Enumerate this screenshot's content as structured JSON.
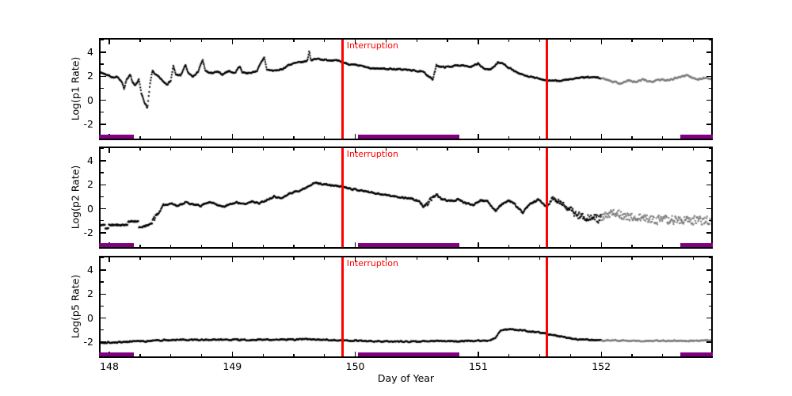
{
  "figure": {
    "xlabel": "Day of Year",
    "annotation_text": "Interruption",
    "colors": {
      "background": "#ffffff",
      "axis": "#000000",
      "points_black": "#000000",
      "points_gray": "#7a7a7a",
      "interruption_line": "#ff0000",
      "annotation_text": "#ff0000",
      "interval_bar": "#800080"
    }
  },
  "chart_data": [
    {
      "type": "scatter",
      "ylabel": "Log(p1 Rate)",
      "xlabel": "",
      "xlim": [
        147.916,
        152.907
      ],
      "ylim": [
        -3.32,
        5.18
      ],
      "x_ticks": [
        148,
        149,
        150,
        151,
        152
      ],
      "y_ticks": [
        -2,
        0,
        2,
        4
      ],
      "x_minor_step": 0.25,
      "y_minor_step": 1,
      "show_x_tick_labels": false,
      "annotation": "Interruption",
      "interruption_lines_x": [
        149.898,
        151.555
      ],
      "interval_bars_x": [
        [
          147.916,
          148.2
        ],
        [
          150.02,
          150.845
        ],
        [
          152.645,
          152.907
        ]
      ],
      "gray_after_x": 152.0,
      "series": {
        "name": "p1",
        "anchors": [
          [
            147.92,
            2.35
          ],
          [
            148.0,
            2.05
          ],
          [
            148.04,
            1.85
          ],
          [
            148.07,
            1.95
          ],
          [
            148.1,
            1.55
          ],
          [
            148.12,
            0.95
          ],
          [
            148.14,
            1.75
          ],
          [
            148.17,
            2.1
          ],
          [
            148.19,
            1.45
          ],
          [
            148.21,
            1.15
          ],
          [
            148.24,
            1.75
          ],
          [
            148.26,
            0.55
          ],
          [
            148.29,
            -0.25
          ],
          [
            148.31,
            -0.65
          ],
          [
            148.33,
            1.25
          ],
          [
            148.35,
            2.45
          ],
          [
            148.38,
            2.1
          ],
          [
            148.41,
            1.85
          ],
          [
            148.44,
            1.55
          ],
          [
            148.47,
            1.35
          ],
          [
            148.5,
            1.65
          ],
          [
            148.52,
            2.85
          ],
          [
            148.54,
            2.15
          ],
          [
            148.58,
            2.05
          ],
          [
            148.62,
            2.95
          ],
          [
            148.64,
            2.25
          ],
          [
            148.68,
            1.95
          ],
          [
            148.72,
            2.35
          ],
          [
            148.76,
            3.35
          ],
          [
            148.78,
            2.45
          ],
          [
            148.82,
            2.25
          ],
          [
            148.88,
            2.35
          ],
          [
            148.92,
            2.15
          ],
          [
            148.97,
            2.45
          ],
          [
            149.02,
            2.25
          ],
          [
            149.06,
            2.85
          ],
          [
            149.08,
            2.35
          ],
          [
            149.14,
            2.25
          ],
          [
            149.2,
            2.45
          ],
          [
            149.26,
            3.6
          ],
          [
            149.28,
            2.55
          ],
          [
            149.34,
            2.45
          ],
          [
            149.4,
            2.55
          ],
          [
            149.46,
            2.95
          ],
          [
            149.52,
            3.1
          ],
          [
            149.58,
            3.2
          ],
          [
            149.61,
            3.3
          ],
          [
            149.625,
            4.1
          ],
          [
            149.64,
            3.35
          ],
          [
            149.7,
            3.45
          ],
          [
            149.76,
            3.35
          ],
          [
            149.82,
            3.35
          ],
          [
            149.9,
            3.15
          ],
          [
            149.97,
            2.95
          ],
          [
            150.05,
            2.85
          ],
          [
            150.12,
            2.65
          ],
          [
            150.2,
            2.65
          ],
          [
            150.3,
            2.6
          ],
          [
            150.4,
            2.55
          ],
          [
            150.5,
            2.45
          ],
          [
            150.55,
            2.35
          ],
          [
            150.6,
            2.0
          ],
          [
            150.63,
            1.7
          ],
          [
            150.66,
            2.9
          ],
          [
            150.72,
            2.75
          ],
          [
            150.8,
            2.85
          ],
          [
            150.88,
            2.95
          ],
          [
            150.94,
            2.75
          ],
          [
            151.0,
            3.05
          ],
          [
            151.04,
            2.65
          ],
          [
            151.1,
            2.55
          ],
          [
            151.16,
            3.15
          ],
          [
            151.2,
            3.05
          ],
          [
            151.26,
            2.65
          ],
          [
            151.32,
            2.25
          ],
          [
            151.38,
            2.05
          ],
          [
            151.44,
            1.9
          ],
          [
            151.5,
            1.8
          ],
          [
            151.56,
            1.65
          ],
          [
            151.64,
            1.6
          ],
          [
            151.72,
            1.7
          ],
          [
            151.8,
            1.85
          ],
          [
            151.88,
            1.9
          ],
          [
            151.96,
            1.9
          ],
          [
            152.04,
            1.75
          ],
          [
            152.1,
            1.55
          ],
          [
            152.16,
            1.4
          ],
          [
            152.22,
            1.65
          ],
          [
            152.28,
            1.5
          ],
          [
            152.34,
            1.7
          ],
          [
            152.4,
            1.55
          ],
          [
            152.46,
            1.75
          ],
          [
            152.52,
            1.65
          ],
          [
            152.58,
            1.8
          ],
          [
            152.64,
            1.95
          ],
          [
            152.7,
            2.1
          ],
          [
            152.74,
            1.85
          ],
          [
            152.8,
            1.75
          ],
          [
            152.86,
            1.9
          ],
          [
            152.9,
            1.75
          ]
        ],
        "noise_amp": [
          [
            147.92,
            0.07
          ],
          [
            152.0,
            0.07
          ],
          [
            152.2,
            0.09
          ],
          [
            152.9,
            0.09
          ]
        ],
        "band_until_x": null
      }
    },
    {
      "type": "scatter",
      "ylabel": "Log(p2 Rate)",
      "xlabel": "",
      "xlim": [
        147.916,
        152.907
      ],
      "ylim": [
        -3.32,
        5.18
      ],
      "x_ticks": [
        148,
        149,
        150,
        151,
        152
      ],
      "y_ticks": [
        -2,
        0,
        2,
        4
      ],
      "x_minor_step": 0.25,
      "y_minor_step": 1,
      "show_x_tick_labels": false,
      "annotation": "Interruption",
      "interruption_lines_x": [
        149.898,
        151.555
      ],
      "interval_bars_x": [
        [
          147.916,
          148.2
        ],
        [
          150.02,
          150.845
        ],
        [
          152.645,
          152.907
        ]
      ],
      "gray_after_x": 152.0,
      "series": {
        "name": "p2",
        "anchors": [
          [
            147.92,
            -1.35
          ],
          [
            148.1,
            -1.35
          ],
          [
            148.25,
            -1.3
          ],
          [
            148.3,
            -1.15
          ],
          [
            148.36,
            -0.85
          ],
          [
            148.4,
            -0.35
          ],
          [
            148.44,
            0.3
          ],
          [
            148.5,
            0.45
          ],
          [
            148.56,
            0.25
          ],
          [
            148.62,
            0.55
          ],
          [
            148.68,
            0.35
          ],
          [
            148.74,
            0.25
          ],
          [
            148.8,
            0.55
          ],
          [
            148.86,
            0.45
          ],
          [
            148.92,
            0.15
          ],
          [
            148.98,
            0.35
          ],
          [
            149.04,
            0.55
          ],
          [
            149.1,
            0.35
          ],
          [
            149.16,
            0.65
          ],
          [
            149.22,
            0.45
          ],
          [
            149.28,
            0.75
          ],
          [
            149.34,
            1.05
          ],
          [
            149.4,
            0.85
          ],
          [
            149.46,
            1.25
          ],
          [
            149.52,
            1.45
          ],
          [
            149.58,
            1.65
          ],
          [
            149.64,
            2.05
          ],
          [
            149.68,
            2.15
          ],
          [
            149.74,
            2.05
          ],
          [
            149.8,
            1.95
          ],
          [
            149.9,
            1.85
          ],
          [
            149.98,
            1.65
          ],
          [
            150.06,
            1.5
          ],
          [
            150.14,
            1.35
          ],
          [
            150.22,
            1.2
          ],
          [
            150.3,
            1.05
          ],
          [
            150.38,
            0.95
          ],
          [
            150.46,
            0.85
          ],
          [
            150.52,
            0.55
          ],
          [
            150.56,
            0.2
          ],
          [
            150.62,
            0.75
          ],
          [
            150.66,
            1.2
          ],
          [
            150.7,
            0.8
          ],
          [
            150.78,
            0.65
          ],
          [
            150.84,
            0.75
          ],
          [
            150.9,
            0.45
          ],
          [
            150.96,
            0.35
          ],
          [
            151.02,
            0.75
          ],
          [
            151.08,
            0.55
          ],
          [
            151.14,
            -0.15
          ],
          [
            151.2,
            0.45
          ],
          [
            151.26,
            0.65
          ],
          [
            151.32,
            0.15
          ],
          [
            151.36,
            -0.35
          ],
          [
            151.42,
            0.35
          ],
          [
            151.48,
            0.75
          ],
          [
            151.52,
            0.45
          ],
          [
            151.56,
            0.15
          ],
          [
            151.6,
            0.85
          ],
          [
            151.66,
            0.55
          ],
          [
            151.72,
            0.15
          ],
          [
            151.8,
            -0.5
          ],
          [
            151.88,
            -0.7
          ],
          [
            151.96,
            -0.8
          ],
          [
            152.0,
            -0.8
          ],
          [
            152.08,
            -0.45
          ],
          [
            152.14,
            -0.3
          ],
          [
            152.2,
            -0.7
          ],
          [
            152.3,
            -0.75
          ],
          [
            152.4,
            -0.85
          ],
          [
            152.5,
            -0.95
          ],
          [
            152.6,
            -0.9
          ],
          [
            152.7,
            -1.0
          ],
          [
            152.8,
            -0.95
          ],
          [
            152.9,
            -0.95
          ]
        ],
        "noise_amp": [
          [
            147.92,
            0.27
          ],
          [
            148.33,
            0.27
          ],
          [
            148.42,
            0.08
          ],
          [
            150.45,
            0.08
          ],
          [
            150.6,
            0.18
          ],
          [
            150.7,
            0.09
          ],
          [
            151.0,
            0.09
          ],
          [
            151.5,
            0.12
          ],
          [
            151.75,
            0.2
          ],
          [
            152.0,
            0.28
          ],
          [
            152.9,
            0.28
          ]
        ],
        "band_until_x": 148.36
      }
    },
    {
      "type": "scatter",
      "ylabel": "Log(p5 Rate)",
      "xlabel": "Day of Year",
      "xlim": [
        147.916,
        152.907
      ],
      "ylim": [
        -3.32,
        5.18
      ],
      "x_ticks": [
        148,
        149,
        150,
        151,
        152
      ],
      "y_ticks": [
        -2,
        0,
        2,
        4
      ],
      "x_minor_step": 0.25,
      "y_minor_step": 1,
      "show_x_tick_labels": true,
      "annotation": "Interruption",
      "interruption_lines_x": [
        149.898,
        151.555
      ],
      "interval_bars_x": [
        [
          147.916,
          148.2
        ],
        [
          150.02,
          150.845
        ],
        [
          152.645,
          152.907
        ]
      ],
      "gray_after_x": 152.0,
      "series": {
        "name": "p5",
        "anchors": [
          [
            147.92,
            -2.05
          ],
          [
            148.1,
            -2.0
          ],
          [
            148.3,
            -1.9
          ],
          [
            148.5,
            -1.82
          ],
          [
            148.8,
            -1.8
          ],
          [
            149.1,
            -1.82
          ],
          [
            149.4,
            -1.8
          ],
          [
            149.6,
            -1.76
          ],
          [
            149.9,
            -1.85
          ],
          [
            150.1,
            -1.92
          ],
          [
            150.4,
            -1.95
          ],
          [
            150.7,
            -1.92
          ],
          [
            151.0,
            -1.9
          ],
          [
            151.1,
            -1.87
          ],
          [
            151.14,
            -1.6
          ],
          [
            151.18,
            -1.02
          ],
          [
            151.24,
            -0.95
          ],
          [
            151.32,
            -1.0
          ],
          [
            151.4,
            -1.08
          ],
          [
            151.48,
            -1.18
          ],
          [
            151.56,
            -1.3
          ],
          [
            151.64,
            -1.48
          ],
          [
            151.72,
            -1.63
          ],
          [
            151.8,
            -1.75
          ],
          [
            151.9,
            -1.8
          ],
          [
            152.0,
            -1.85
          ],
          [
            152.3,
            -1.9
          ],
          [
            152.6,
            -1.9
          ],
          [
            152.9,
            -1.85
          ]
        ],
        "noise_amp": [
          [
            147.92,
            0.07
          ],
          [
            152.9,
            0.06
          ]
        ],
        "band_until_x": null
      }
    }
  ]
}
